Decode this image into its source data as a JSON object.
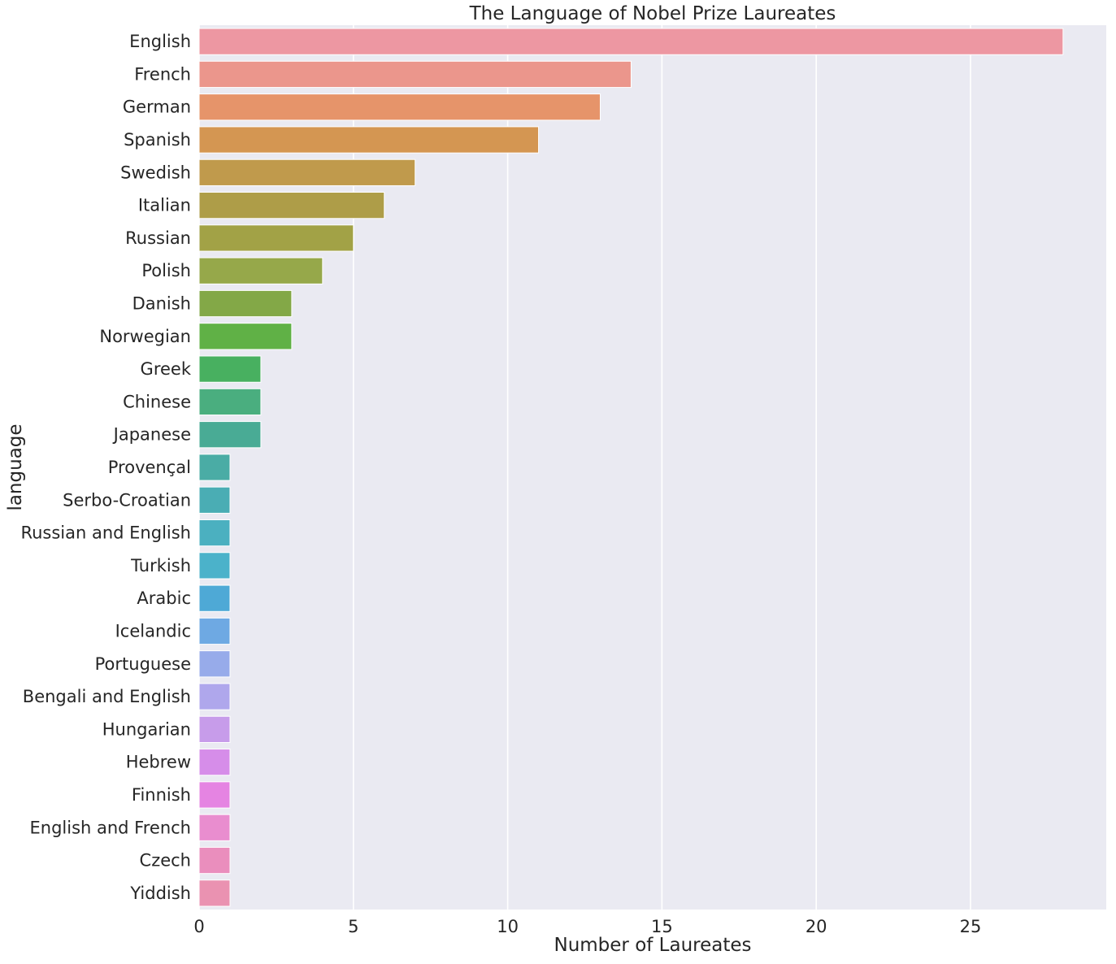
{
  "chart_data": {
    "type": "bar",
    "orientation": "horizontal",
    "title": "The Language of Nobel Prize Laureates",
    "xlabel": "Number of Laureates",
    "ylabel": "language",
    "xlim": [
      0,
      29.4
    ],
    "xticks": [
      0,
      5,
      10,
      15,
      20,
      25
    ],
    "grid": true,
    "background": "#eaeaf2",
    "categories": [
      "English",
      "French",
      "German",
      "Spanish",
      "Swedish",
      "Italian",
      "Russian",
      "Polish",
      "Danish",
      "Norwegian",
      "Greek",
      "Chinese",
      "Japanese",
      "Provençal",
      "Serbo-Croatian",
      "Russian and English",
      "Turkish",
      "Arabic",
      "Icelandic",
      "Portuguese",
      "Bengali and English",
      "Hungarian",
      "Hebrew",
      "Finnish",
      "English and French",
      "Czech",
      "Yiddish"
    ],
    "values": [
      28,
      14,
      13,
      11,
      7,
      6,
      5,
      4,
      3,
      3,
      2,
      2,
      2,
      1,
      1,
      1,
      1,
      1,
      1,
      1,
      1,
      1,
      1,
      1,
      1,
      1,
      1
    ],
    "colors": [
      "#ed97a2",
      "#eb968c",
      "#e6946a",
      "#d49652",
      "#c09a4c",
      "#ae9d48",
      "#a2a246",
      "#96a84a",
      "#83a847",
      "#60b146",
      "#48b060",
      "#4aae7f",
      "#49ab95",
      "#4aaca5",
      "#4aadb4",
      "#4bb0c0",
      "#4bb2ca",
      "#4ea9d6",
      "#6ea9e3",
      "#97abea",
      "#afa7ec",
      "#c79cea",
      "#d68de9",
      "#e584e2",
      "#e98dcf",
      "#ea8ebd",
      "#ea92b1"
    ]
  }
}
